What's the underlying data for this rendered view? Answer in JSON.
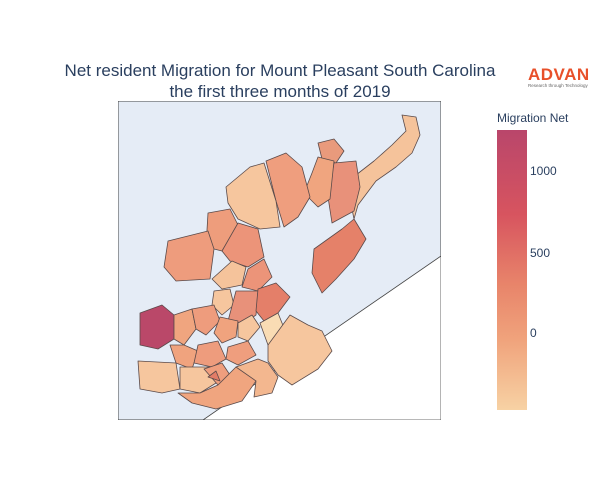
{
  "title_line1": "Net resident Migration for Mount Pleasant South Carolina",
  "title_line2": "the first three months of 2019",
  "logo": {
    "word": "ADVAN",
    "tagline": "Research through Technology",
    "color": "#e8502a"
  },
  "colorbar": {
    "title": "Migration Net",
    "ticks": [
      "1000",
      "500",
      "0"
    ],
    "colors": [
      "#f7d2a4",
      "#f0a37c",
      "#e8846a",
      "#d7545f",
      "#b9466b"
    ]
  },
  "map": {
    "water_color": "#e5ecf6",
    "land_color": "#ffffff",
    "region_count": 30
  }
}
